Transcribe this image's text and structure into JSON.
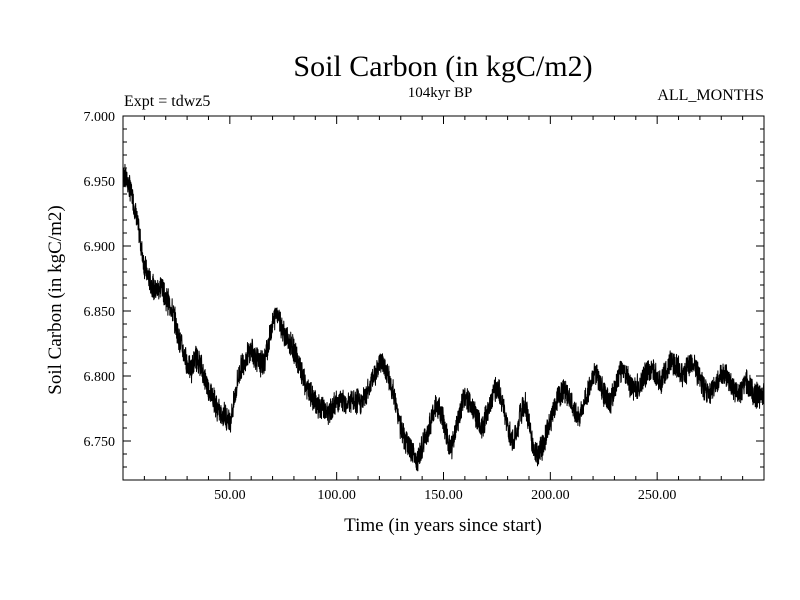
{
  "chart_data": {
    "type": "line",
    "title": "Soil Carbon (in kgC/m2)",
    "subtitle": "104kyr BP",
    "experiment_label": "Expt = tdwz5",
    "months_label": "ALL_MONTHS",
    "xlabel": "Time (in years since start)",
    "ylabel": "Soil Carbon (in kgC/m2)",
    "xlim": [
      0,
      300
    ],
    "ylim": [
      6.72,
      7.0
    ],
    "x_ticks": [
      50,
      100,
      150,
      200,
      250
    ],
    "x_tick_labels": [
      "50.00",
      "100.00",
      "150.00",
      "200.00",
      "250.00"
    ],
    "y_ticks": [
      6.75,
      6.8,
      6.85,
      6.9,
      6.95,
      7.0
    ],
    "y_tick_labels": [
      "6.750",
      "6.800",
      "6.850",
      "6.900",
      "6.950",
      "7.000"
    ],
    "grid": false,
    "legend": "none",
    "line_color": "#000000",
    "series": [
      {
        "x": [
          0,
          2,
          4,
          6,
          8,
          10,
          12,
          15,
          18,
          20,
          22,
          24,
          26,
          28,
          30,
          32,
          34,
          36,
          38,
          40,
          42,
          44,
          46,
          48,
          50,
          52,
          54,
          56,
          58,
          60,
          62,
          64,
          66,
          68,
          70,
          72,
          74,
          76,
          78,
          80,
          82,
          84,
          86,
          88,
          90,
          92,
          94,
          96,
          98,
          100,
          104,
          108,
          112,
          116,
          120,
          122,
          124,
          126,
          128,
          130,
          132,
          134,
          136,
          138,
          140,
          142,
          144,
          146,
          148,
          150,
          152,
          154,
          156,
          158,
          160,
          162,
          164,
          166,
          168,
          170,
          172,
          174,
          176,
          178,
          180,
          182,
          184,
          186,
          188,
          190,
          192,
          194,
          196,
          198,
          200,
          202,
          204,
          206,
          208,
          210,
          212,
          214,
          216,
          218,
          220,
          222,
          224,
          226,
          228,
          230,
          232,
          234,
          236,
          238,
          240,
          242,
          244,
          246,
          248,
          250,
          252,
          254,
          256,
          258,
          260,
          262,
          264,
          266,
          268,
          270,
          272,
          274,
          276,
          278,
          280,
          282,
          284,
          286,
          288,
          290,
          292,
          294,
          296,
          298,
          300
        ],
        "y": [
          6.955,
          6.95,
          6.94,
          6.925,
          6.905,
          6.885,
          6.875,
          6.865,
          6.87,
          6.86,
          6.855,
          6.845,
          6.83,
          6.82,
          6.81,
          6.805,
          6.815,
          6.81,
          6.8,
          6.79,
          6.785,
          6.775,
          6.77,
          6.77,
          6.765,
          6.78,
          6.8,
          6.81,
          6.815,
          6.82,
          6.815,
          6.81,
          6.81,
          6.825,
          6.84,
          6.85,
          6.84,
          6.83,
          6.825,
          6.82,
          6.81,
          6.8,
          6.79,
          6.785,
          6.78,
          6.775,
          6.775,
          6.77,
          6.775,
          6.78,
          6.78,
          6.78,
          6.78,
          6.795,
          6.81,
          6.81,
          6.8,
          6.79,
          6.775,
          6.76,
          6.75,
          6.745,
          6.74,
          6.735,
          6.745,
          6.755,
          6.765,
          6.775,
          6.775,
          6.765,
          6.75,
          6.745,
          6.76,
          6.775,
          6.785,
          6.78,
          6.775,
          6.765,
          6.76,
          6.77,
          6.78,
          6.79,
          6.79,
          6.775,
          6.76,
          6.75,
          6.755,
          6.77,
          6.78,
          6.765,
          6.745,
          6.74,
          6.745,
          6.755,
          6.765,
          6.775,
          6.785,
          6.79,
          6.785,
          6.78,
          6.77,
          6.77,
          6.78,
          6.79,
          6.8,
          6.8,
          6.79,
          6.785,
          6.78,
          6.79,
          6.8,
          6.805,
          6.8,
          6.79,
          6.79,
          6.795,
          6.8,
          6.805,
          6.805,
          6.8,
          6.795,
          6.805,
          6.81,
          6.81,
          6.805,
          6.8,
          6.805,
          6.81,
          6.805,
          6.8,
          6.79,
          6.785,
          6.79,
          6.795,
          6.8,
          6.8,
          6.795,
          6.79,
          6.785,
          6.79,
          6.795,
          6.79,
          6.785,
          6.785,
          6.785
        ]
      }
    ]
  }
}
